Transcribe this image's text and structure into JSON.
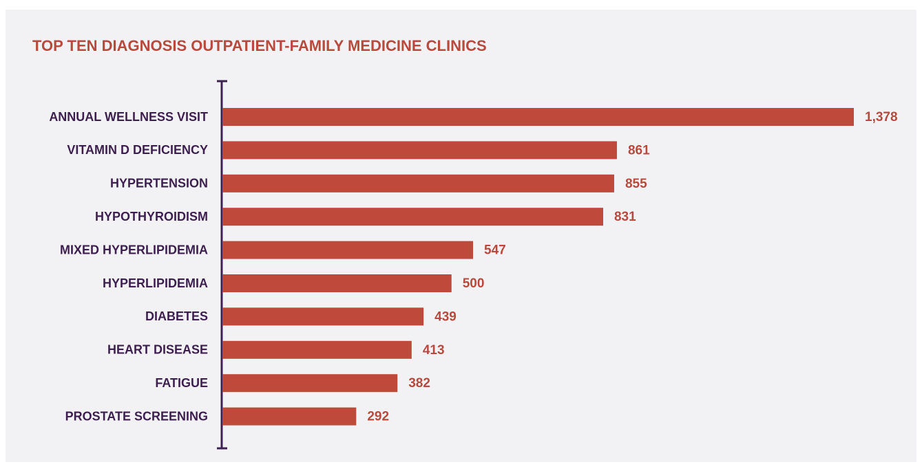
{
  "chart_data": {
    "type": "bar",
    "title": "TOP TEN DIAGNOSIS OUTPATIENT-FAMILY MEDICINE CLINICS",
    "categories": [
      "ANNUAL WELLNESS VISIT",
      "VITAMIN D DEFICIENCY",
      "HYPERTENSION",
      "HYPOTHYROIDISM",
      "MIXED HYPERLIPIDEMIA",
      "HYPERLIPIDEMIA",
      "DIABETES",
      "HEART DISEASE",
      "FATIGUE",
      "PROSTATE SCREENING"
    ],
    "values": [
      1378,
      861,
      855,
      831,
      547,
      500,
      439,
      413,
      382,
      292
    ],
    "value_labels": [
      "1,378",
      "861",
      "855",
      "831",
      "547",
      "500",
      "439",
      "413",
      "382",
      "292"
    ],
    "color": "#bf4a3b",
    "orientation": "horizontal"
  }
}
